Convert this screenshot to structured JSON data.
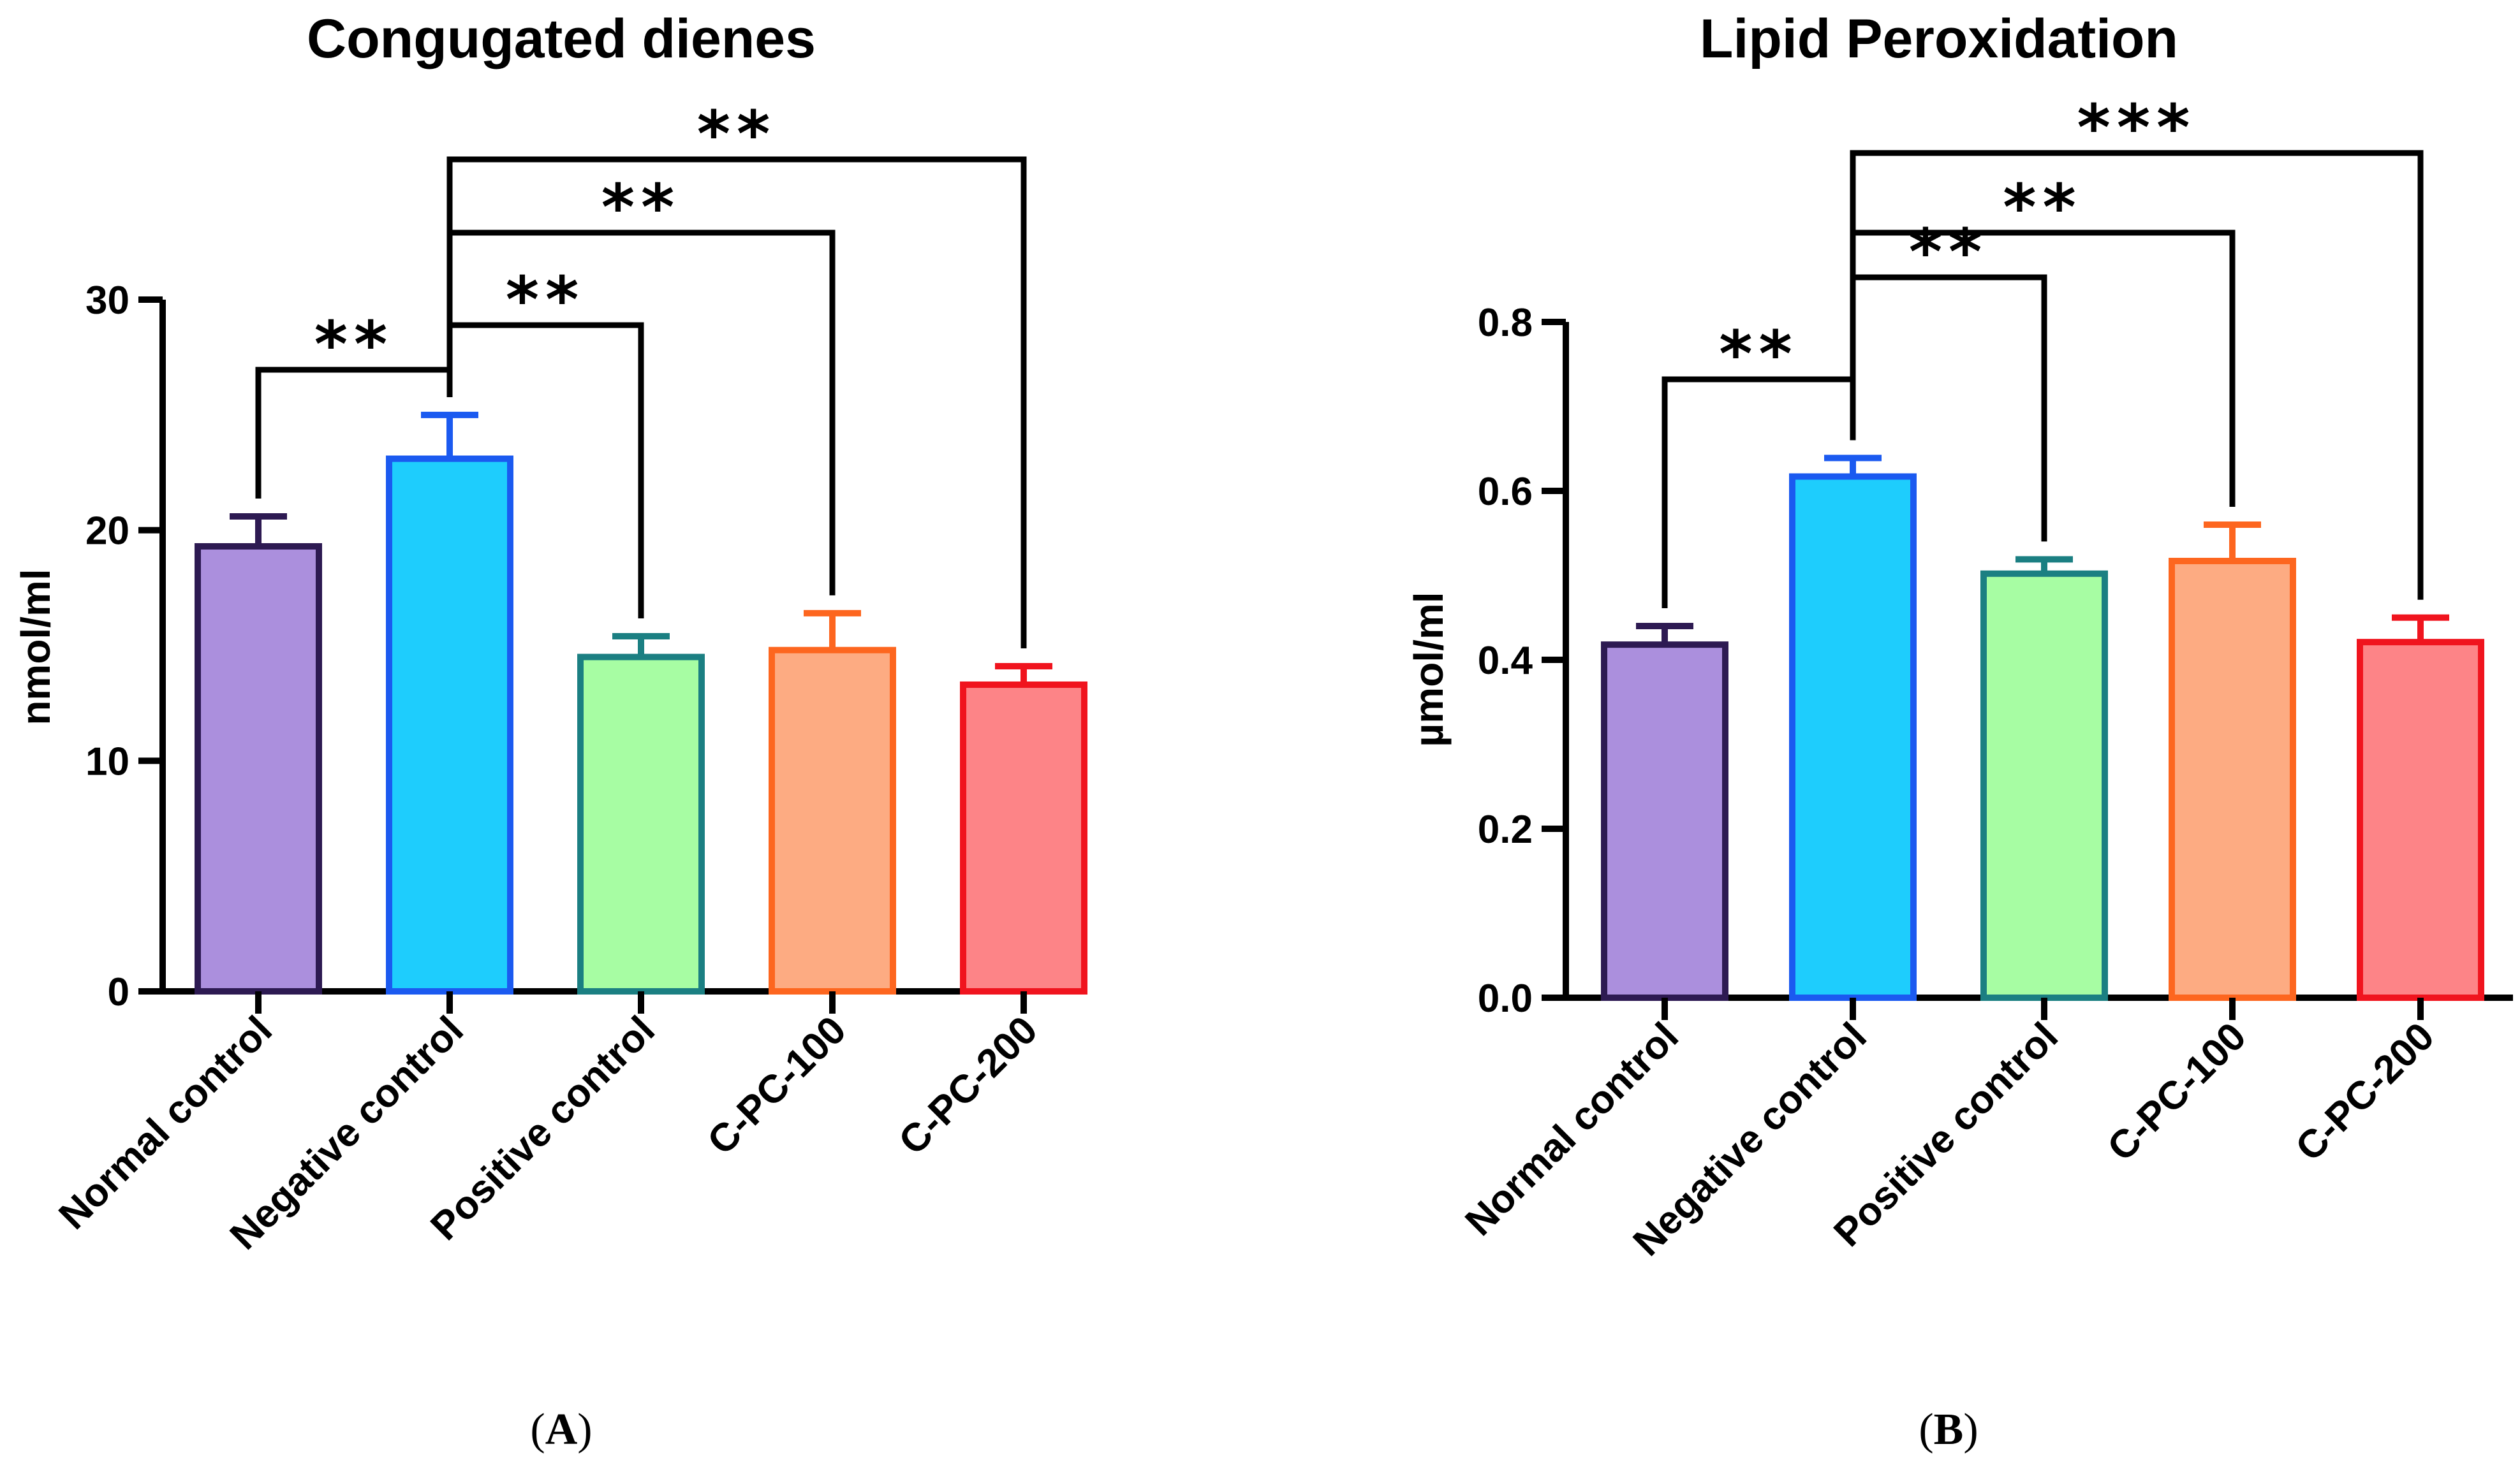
{
  "chart_data": [
    {
      "type": "bar",
      "panel_label": "A",
      "title": "Congugated dienes",
      "ylabel": "nmol/ml",
      "xlabel": "",
      "ylim": [
        0,
        30
      ],
      "yticks": [
        0,
        10,
        20,
        30
      ],
      "ytick_labels": [
        "0",
        "10",
        "20",
        "30"
      ],
      "categories": [
        "Normal control",
        "Negative control",
        "Positive control",
        "C-PC-100",
        "C-PC-200"
      ],
      "values": [
        19.3,
        23.1,
        14.5,
        14.8,
        13.3
      ],
      "errors": [
        1.3,
        1.9,
        0.9,
        1.6,
        0.8
      ],
      "fill_colors": [
        "#ab8fdd",
        "#1ecdfd",
        "#a7fda3",
        "#fdab82",
        "#fd8487"
      ],
      "edge_colors": [
        "#2d1a52",
        "#1b5af0",
        "#1b7f82",
        "#fd661f",
        "#f0141e"
      ],
      "grid": false,
      "significance": [
        {
          "from": 1,
          "to": 0,
          "label": "**"
        },
        {
          "from": 1,
          "to": 2,
          "label": "**"
        },
        {
          "from": 1,
          "to": 3,
          "label": "**"
        },
        {
          "from": 1,
          "to": 4,
          "label": "**"
        }
      ]
    },
    {
      "type": "bar",
      "panel_label": "B",
      "title": "Lipid Peroxidation",
      "ylabel": "µmol/ml",
      "xlabel": "",
      "ylim": [
        0,
        0.8
      ],
      "yticks": [
        0,
        0.2,
        0.4,
        0.6,
        0.8
      ],
      "ytick_labels": [
        "0.0",
        "0.2",
        "0.4",
        "0.6",
        "0.8"
      ],
      "categories": [
        "Normal control",
        "Negative control",
        "Positive control",
        "C-PC-100",
        "C-PC-200"
      ],
      "values": [
        0.418,
        0.617,
        0.502,
        0.517,
        0.421
      ],
      "errors": [
        0.022,
        0.022,
        0.017,
        0.043,
        0.029
      ],
      "fill_colors": [
        "#ab8fdd",
        "#1ecdfd",
        "#a7fda3",
        "#fdab82",
        "#fd8487"
      ],
      "edge_colors": [
        "#2d1a52",
        "#1b5af0",
        "#1b7f82",
        "#fd661f",
        "#f0141e"
      ],
      "grid": false,
      "significance": [
        {
          "from": 1,
          "to": 0,
          "label": "**"
        },
        {
          "from": 1,
          "to": 2,
          "label": "**"
        },
        {
          "from": 1,
          "to": 3,
          "label": "**"
        },
        {
          "from": 1,
          "to": 4,
          "label": "***"
        }
      ]
    }
  ]
}
